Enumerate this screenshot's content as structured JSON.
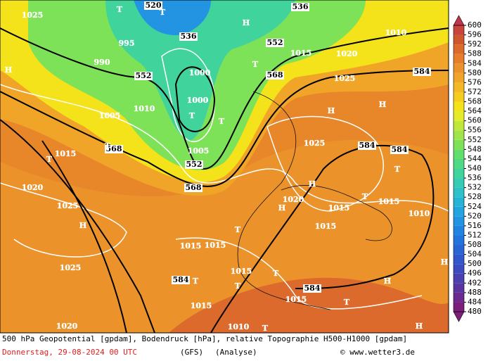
{
  "colorbar": {
    "ticks": [
      480,
      484,
      488,
      492,
      496,
      500,
      504,
      508,
      512,
      516,
      520,
      524,
      528,
      532,
      536,
      540,
      544,
      548,
      552,
      556,
      560,
      564,
      568,
      572,
      576,
      580,
      584,
      588,
      592,
      596,
      600
    ],
    "colors": [
      "#7b1f7a",
      "#6c2a8e",
      "#5a35a0",
      "#4a40b0",
      "#3c4cc0",
      "#3058cc",
      "#2866d6",
      "#2474de",
      "#2284e2",
      "#2294e2",
      "#22a4de",
      "#26b4d6",
      "#2cc2c8",
      "#34ccb4",
      "#40d49c",
      "#4eda84",
      "#62de6c",
      "#7ee258",
      "#9ee44a",
      "#c0e83a",
      "#e4ec2a",
      "#f4e21a",
      "#f6cc1e",
      "#f4b824",
      "#f0a428",
      "#ec922a",
      "#e67e2a",
      "#dc6a2c",
      "#d0562e",
      "#c8443c",
      "#c0344c"
    ]
  },
  "map_labels": [
    "520",
    "536",
    "536",
    "552",
    "552",
    "552",
    "568",
    "568",
    "568",
    "584",
    "584",
    "584",
    "584",
    "584",
    "1025",
    "1010",
    "1015",
    "1020",
    "1025",
    "1000",
    "1000",
    "1005",
    "1010",
    "1015",
    "1020",
    "1025",
    "1025",
    "1020",
    "1025",
    "1020",
    "1015",
    "1015",
    "1015",
    "1015",
    "1015",
    "1015",
    "1010",
    "1015",
    "1010",
    "1015",
    "1005",
    "995",
    "990",
    "H",
    "H",
    "H",
    "H",
    "H",
    "H",
    "H",
    "H",
    "H",
    "H",
    "T",
    "T",
    "T",
    "T",
    "T",
    "T",
    "T",
    "T",
    "T",
    "T",
    "T",
    "T",
    "T",
    "T",
    "T"
  ],
  "footer": {
    "line1": "500 hPa Geopotential [gpdam], Bodendruck [hPa], relative Topographie H500-H1000 [gpdam]",
    "date": "Donnerstag, 29-08-2024  00 UTC",
    "model": "(GFS)",
    "run": "(Analyse)",
    "credit": "© www.wetter3.de"
  }
}
